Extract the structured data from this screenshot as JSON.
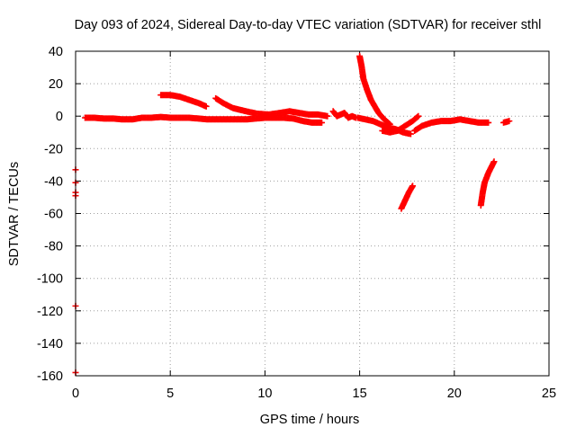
{
  "chart_data": {
    "type": "scatter",
    "title": "Day 093 of 2024, Sidereal Day-to-day VTEC variation (SDTVAR) for receiver sthl",
    "xlabel": "GPS time / hours",
    "ylabel": "SDTVAR / TECUs",
    "xlim": [
      0,
      25
    ],
    "ylim": [
      -160,
      40
    ],
    "xticks": [
      0,
      5,
      10,
      15,
      20,
      25
    ],
    "yticks": [
      40,
      20,
      0,
      -20,
      -40,
      -60,
      -80,
      -100,
      -120,
      -140,
      -160
    ],
    "grid": true,
    "marker": "plus",
    "color": "#ff0000",
    "series": [
      {
        "segments": [
          [
            [
              0.0,
              -33
            ],
            [
              0.0,
              -41
            ],
            [
              0.0,
              -47
            ],
            [
              0.0,
              -49
            ],
            [
              0.0,
              -117
            ],
            [
              0.0,
              -158
            ]
          ],
          [
            [
              0.5,
              -1
            ],
            [
              1.0,
              -1
            ],
            [
              1.5,
              -1.5
            ],
            [
              2.0,
              -1.5
            ],
            [
              2.5,
              -2
            ],
            [
              3.0,
              -2
            ],
            [
              3.5,
              -1
            ],
            [
              4.0,
              -1
            ],
            [
              4.5,
              -0.5
            ],
            [
              5.0,
              -1
            ],
            [
              5.5,
              -1
            ],
            [
              6.0,
              -1
            ],
            [
              6.5,
              -1.5
            ],
            [
              7.0,
              -2
            ],
            [
              7.5,
              -2
            ],
            [
              8.0,
              -2
            ],
            [
              8.5,
              -2
            ],
            [
              9.0,
              -2
            ],
            [
              9.5,
              -1.5
            ],
            [
              10.0,
              -1
            ],
            [
              10.5,
              -1
            ],
            [
              11.0,
              -1
            ],
            [
              11.5,
              -1.5
            ],
            [
              12.0,
              -3
            ],
            [
              12.5,
              -4
            ],
            [
              13.0,
              -4
            ]
          ],
          [
            [
              4.5,
              13
            ],
            [
              5.0,
              13
            ],
            [
              5.5,
              12
            ],
            [
              6.0,
              10
            ],
            [
              6.5,
              8
            ],
            [
              6.9,
              6
            ]
          ],
          [
            [
              7.4,
              11
            ],
            [
              7.8,
              8
            ],
            [
              8.3,
              5
            ],
            [
              9.0,
              3
            ],
            [
              9.6,
              1.5
            ],
            [
              10.2,
              1
            ],
            [
              10.8,
              2
            ],
            [
              11.3,
              3
            ],
            [
              11.8,
              2
            ],
            [
              12.3,
              1
            ],
            [
              12.8,
              1
            ],
            [
              13.3,
              0
            ]
          ],
          [
            [
              13.6,
              3
            ],
            [
              13.8,
              0
            ],
            [
              14.0,
              1
            ],
            [
              14.2,
              2
            ],
            [
              14.4,
              -1
            ],
            [
              14.6,
              0
            ],
            [
              14.8,
              -1
            ]
          ],
          [
            [
              14.9,
              -1
            ],
            [
              15.3,
              -2
            ],
            [
              15.7,
              -3
            ],
            [
              16.1,
              -5
            ],
            [
              16.5,
              -7
            ],
            [
              16.9,
              -8
            ],
            [
              17.3,
              -10
            ],
            [
              17.7,
              -11
            ]
          ],
          [
            [
              15.0,
              37
            ],
            [
              15.1,
              31
            ],
            [
              15.2,
              23
            ],
            [
              15.4,
              16
            ],
            [
              15.6,
              10
            ],
            [
              15.8,
              6
            ],
            [
              16.0,
              2
            ],
            [
              16.3,
              -2
            ],
            [
              16.6,
              -5
            ]
          ],
          [
            [
              16.2,
              -9
            ],
            [
              16.6,
              -10
            ],
            [
              17.0,
              -9
            ],
            [
              17.4,
              -6
            ],
            [
              17.8,
              -3
            ],
            [
              18.1,
              0
            ]
          ],
          [
            [
              17.9,
              -9
            ],
            [
              18.3,
              -6
            ],
            [
              18.8,
              -4
            ],
            [
              19.3,
              -3
            ],
            [
              19.8,
              -3
            ],
            [
              20.3,
              -2
            ],
            [
              20.8,
              -3
            ],
            [
              21.3,
              -4
            ],
            [
              21.8,
              -4
            ]
          ],
          [
            [
              22.6,
              -4
            ],
            [
              22.9,
              -3
            ]
          ],
          [
            [
              17.2,
              -57
            ],
            [
              17.4,
              -52
            ],
            [
              17.6,
              -47
            ],
            [
              17.8,
              -43
            ]
          ],
          [
            [
              21.4,
              -55
            ],
            [
              21.5,
              -47
            ],
            [
              21.6,
              -41
            ],
            [
              21.8,
              -35
            ],
            [
              22.1,
              -28
            ]
          ]
        ]
      }
    ]
  }
}
